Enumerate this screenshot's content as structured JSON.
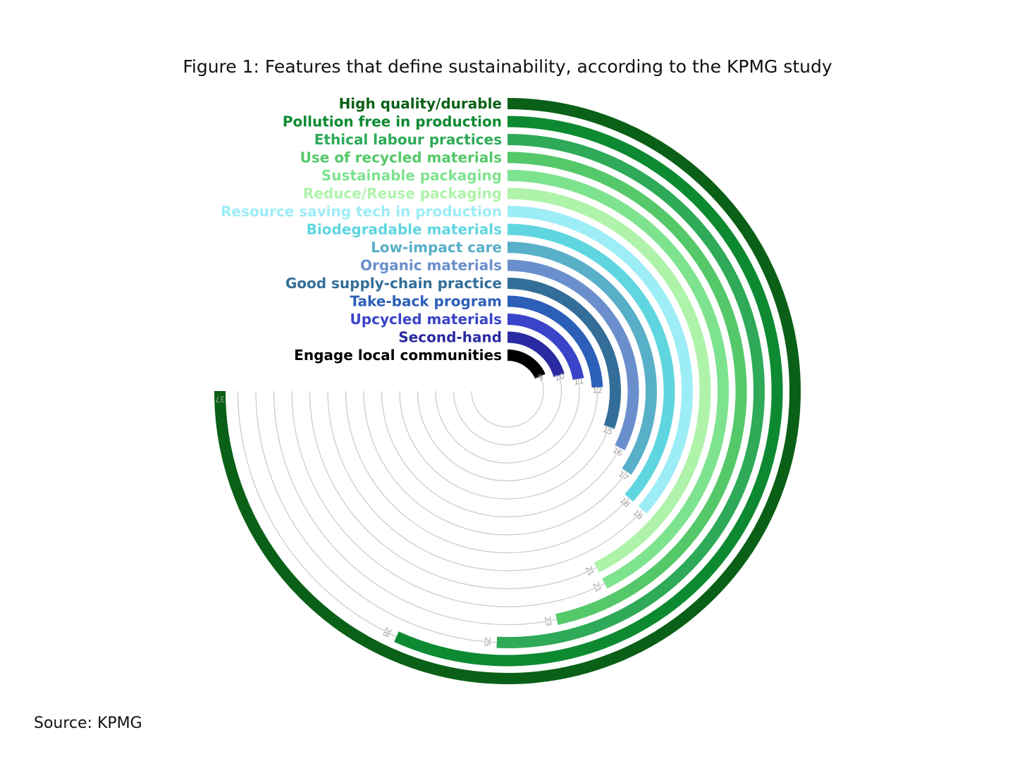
{
  "title": "Figure 1: Features that define sustainability, according to the KPMG study",
  "source": "Source: KPMG",
  "chart_data": {
    "type": "radial-bar",
    "title": "Figure 1: Features that define sustainability, according to the KPMG study",
    "max": 37,
    "categories": [
      "High quality/durable",
      "Pollution free in production",
      "Ethical labour practices",
      "Use of recycled materials",
      "Sustainable packaging",
      "Reduce/Reuse packaging",
      "Resource saving tech in production",
      "Biodegradable materials",
      "Low-impact care",
      "Organic materials",
      "Good supply-chain practice",
      "Take-back program",
      "Upcycled materials",
      "Second-hand",
      "Engage local communities"
    ],
    "values": [
      37,
      28,
      25,
      23,
      21,
      21,
      18,
      18,
      17,
      16,
      15,
      12,
      11,
      10,
      9
    ],
    "colors": [
      "#0a6016",
      "#0d8a31",
      "#2eaa58",
      "#55c86a",
      "#7ee38f",
      "#aef3a9",
      "#9dedf7",
      "#5fd6df",
      "#58afc8",
      "#6a8fcc",
      "#336e98",
      "#2c5fb8",
      "#3a44c8",
      "#2a2aa2",
      "#000000"
    ],
    "track_color": "#c9c9c9",
    "value_label_color": "#a0a0a0"
  }
}
